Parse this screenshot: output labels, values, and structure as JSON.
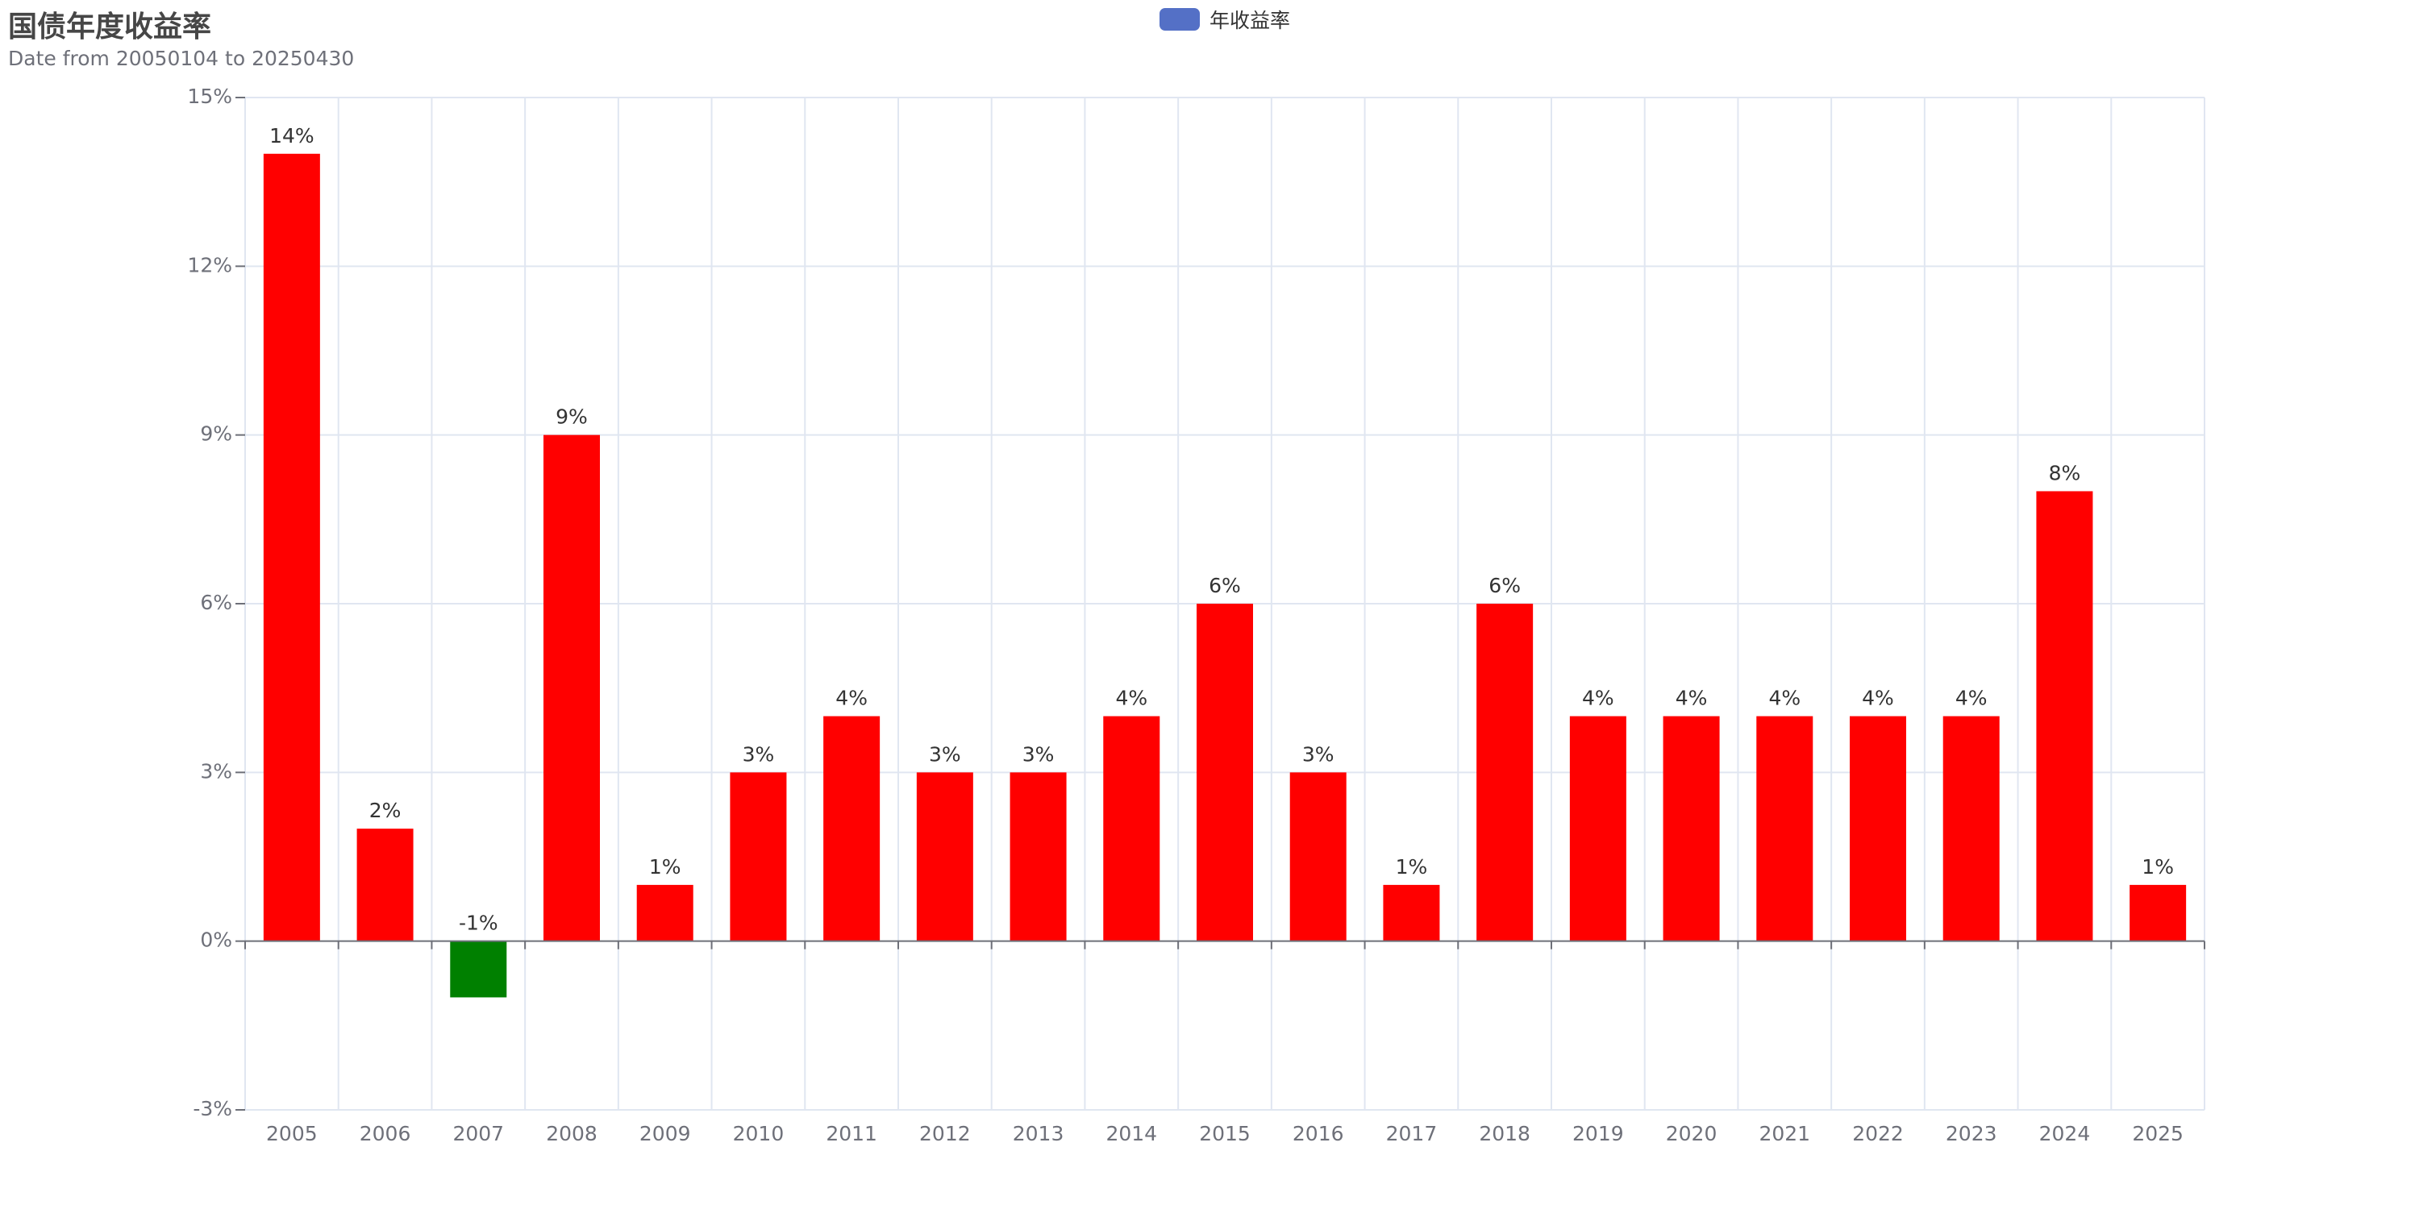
{
  "chart_data": {
    "type": "bar",
    "title": "国债年度收益率",
    "subtitle": "Date from 20050104 to 20250430",
    "legend": {
      "entries": [
        "年收益率"
      ],
      "placement": "top-center"
    },
    "series": [
      {
        "name": "年收益率",
        "values": [
          14,
          2,
          -1,
          9,
          1,
          3,
          4,
          3,
          3,
          4,
          6,
          3,
          1,
          6,
          4,
          4,
          4,
          4,
          4,
          8,
          1
        ],
        "labels": [
          "14%",
          "2%",
          "-1%",
          "9%",
          "1%",
          "3%",
          "4%",
          "3%",
          "3%",
          "4%",
          "6%",
          "3%",
          "1%",
          "6%",
          "4%",
          "4%",
          "4%",
          "4%",
          "4%",
          "8%",
          "1%"
        ]
      }
    ],
    "categories": [
      "2005",
      "2006",
      "2007",
      "2008",
      "2009",
      "2010",
      "2011",
      "2012",
      "2013",
      "2014",
      "2015",
      "2016",
      "2017",
      "2018",
      "2019",
      "2020",
      "2021",
      "2022",
      "2023",
      "2024",
      "2025"
    ],
    "xlabel": "",
    "ylabel": "",
    "ylim": [
      -3,
      15
    ],
    "yticks": [
      -3,
      0,
      3,
      6,
      9,
      12,
      15
    ],
    "ytick_labels": [
      "-3%",
      "0%",
      "3%",
      "6%",
      "9%",
      "12%",
      "15%"
    ],
    "grid": true,
    "colors": {
      "positive": "#ff0000",
      "negative": "#008000",
      "legend": "#5470c6",
      "grid": "#e0e6f1",
      "axis": "#6e7079"
    }
  }
}
